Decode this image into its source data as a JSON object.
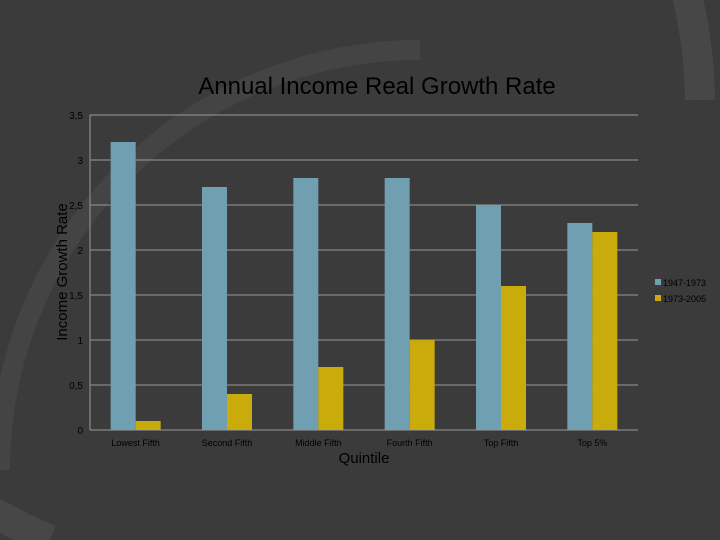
{
  "chart_data": {
    "type": "bar",
    "title": "Annual Income Real Growth Rate",
    "xlabel": "Quintile",
    "ylabel": "Income Growth Rate",
    "categories": [
      "Lowest Fifth",
      "Second Fifth",
      "Middle Fifth",
      "Fourth Fifth",
      "Top Fifth",
      "Top 5%"
    ],
    "series": [
      {
        "name": "1947-1973",
        "values": [
          3.2,
          2.7,
          2.8,
          2.8,
          2.5,
          2.3
        ]
      },
      {
        "name": "1973-2005",
        "values": [
          0.1,
          0.4,
          0.7,
          1.0,
          1.6,
          2.2
        ]
      }
    ],
    "ylim": [
      0,
      3.5
    ],
    "yticks": [
      0,
      0.5,
      1,
      1.5,
      2,
      2.5,
      3,
      3.5
    ],
    "ytick_labels": [
      "0",
      "0,5",
      "1",
      "1,5",
      "2",
      "2,5",
      "3",
      "3,5"
    ],
    "grid": true,
    "legend": "right",
    "colors": {
      "series": [
        "#6f9fb0",
        "#c9ab0b"
      ],
      "grid": "#9a9a9a",
      "text": "#000000",
      "background": "#3b3b3b"
    }
  }
}
